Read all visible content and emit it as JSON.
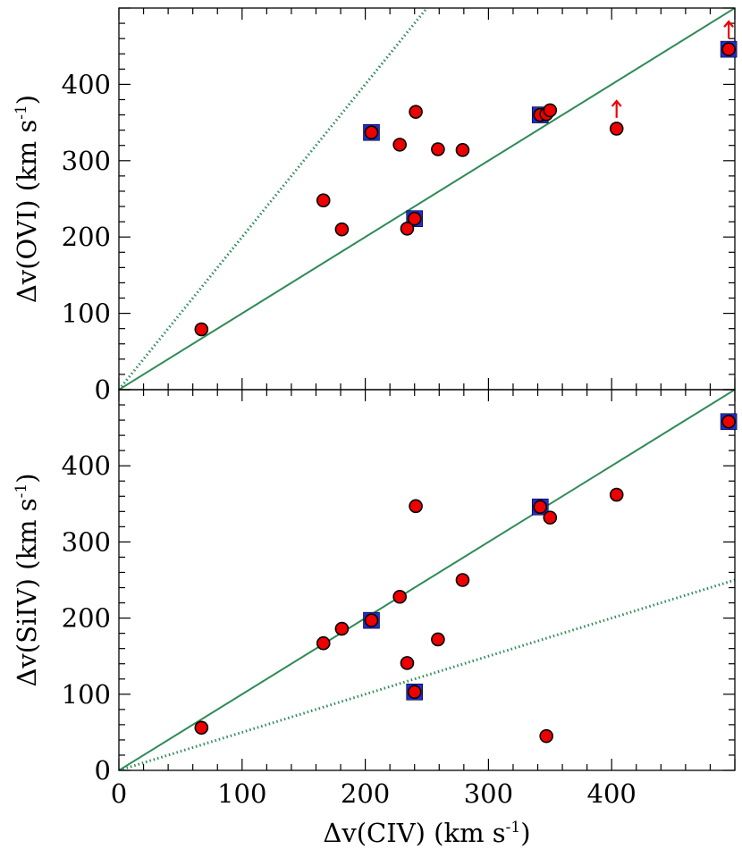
{
  "chart_data": [
    {
      "type": "scatter",
      "panel": "top",
      "ylabel": "Δv(OVI)  (km s",
      "ylabel_sup": "-1",
      "ylabel_close": ")",
      "xlim": [
        0,
        500
      ],
      "ylim": [
        0,
        500
      ],
      "xticks": [
        0,
        100,
        200,
        300,
        400
      ],
      "yticks": [
        0,
        100,
        200,
        300,
        400
      ],
      "ytick_labels": [
        "0",
        "100",
        "200",
        "300",
        "400"
      ],
      "points": [
        {
          "x": 67,
          "y": 79
        },
        {
          "x": 166,
          "y": 248
        },
        {
          "x": 181,
          "y": 210
        },
        {
          "x": 205,
          "y": 337
        },
        {
          "x": 228,
          "y": 321
        },
        {
          "x": 234,
          "y": 211
        },
        {
          "x": 240,
          "y": 224
        },
        {
          "x": 241,
          "y": 364
        },
        {
          "x": 259,
          "y": 315
        },
        {
          "x": 279,
          "y": 314
        },
        {
          "x": 342,
          "y": 360
        },
        {
          "x": 347,
          "y": 361
        },
        {
          "x": 350,
          "y": 366
        },
        {
          "x": 404,
          "y": 342
        },
        {
          "x": 495,
          "y": 446
        }
      ],
      "squares": [
        {
          "x": 205,
          "y": 337
        },
        {
          "x": 240,
          "y": 224
        },
        {
          "x": 342,
          "y": 360
        },
        {
          "x": 495,
          "y": 446
        }
      ],
      "lower_limit_arrows": [
        {
          "x": 404,
          "y": 342
        },
        {
          "x": 495,
          "y": 446
        }
      ],
      "reference_lines": [
        {
          "style": "solid",
          "slope": 1
        },
        {
          "style": "dotted",
          "slope": 2
        }
      ]
    },
    {
      "type": "scatter",
      "panel": "bottom",
      "ylabel": "Δv(SiIV)  (km s",
      "ylabel_sup": "-1",
      "ylabel_close": ")",
      "xlabel": "Δv(CIV)  (km s",
      "xlabel_sup": "-1",
      "xlabel_close": ")",
      "xlim": [
        0,
        500
      ],
      "ylim": [
        0,
        500
      ],
      "xticks": [
        0,
        100,
        200,
        300,
        400
      ],
      "xtick_labels": [
        "0",
        "100",
        "200",
        "300",
        "400"
      ],
      "yticks": [
        0,
        100,
        200,
        300,
        400
      ],
      "ytick_labels": [
        "0",
        "100",
        "200",
        "300",
        "400"
      ],
      "points": [
        {
          "x": 67,
          "y": 56
        },
        {
          "x": 166,
          "y": 167
        },
        {
          "x": 181,
          "y": 186
        },
        {
          "x": 205,
          "y": 197
        },
        {
          "x": 228,
          "y": 228
        },
        {
          "x": 234,
          "y": 141
        },
        {
          "x": 240,
          "y": 103
        },
        {
          "x": 241,
          "y": 347
        },
        {
          "x": 259,
          "y": 172
        },
        {
          "x": 279,
          "y": 250
        },
        {
          "x": 342,
          "y": 346
        },
        {
          "x": 347,
          "y": 45
        },
        {
          "x": 350,
          "y": 332
        },
        {
          "x": 404,
          "y": 362
        },
        {
          "x": 495,
          "y": 458
        }
      ],
      "squares": [
        {
          "x": 205,
          "y": 197
        },
        {
          "x": 240,
          "y": 103
        },
        {
          "x": 342,
          "y": 346
        },
        {
          "x": 495,
          "y": 458
        }
      ],
      "reference_lines": [
        {
          "style": "solid",
          "slope": 1
        },
        {
          "style": "dotted",
          "slope": 0.5
        }
      ]
    }
  ]
}
